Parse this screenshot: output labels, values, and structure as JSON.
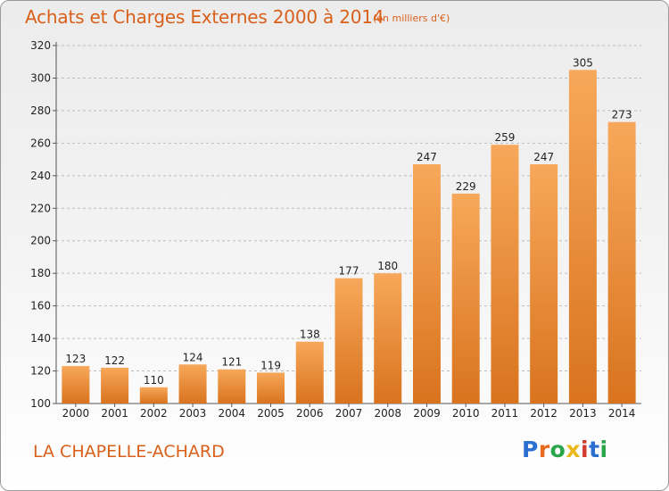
{
  "header": {
    "title": "Achats et Charges Externes 2000 à 2014",
    "subtitle": "(en milliers d'€)"
  },
  "footer": {
    "commune": "LA CHAPELLE-ACHARD",
    "brand": [
      "P",
      "r",
      "o",
      "x",
      "i",
      "t",
      "i"
    ]
  },
  "colors": {
    "bar_light": "#f7a85a",
    "bar_dark": "#d9731e",
    "text_accent": "#d9601b",
    "grid": "#bdbdbd"
  },
  "chart_data": {
    "type": "bar",
    "title": "Achats et Charges Externes 2000 à 2014",
    "subtitle": "(en milliers d'€)",
    "xlabel": "",
    "ylabel": "",
    "categories": [
      "2000",
      "2001",
      "2002",
      "2003",
      "2004",
      "2005",
      "2006",
      "2007",
      "2008",
      "2009",
      "2010",
      "2011",
      "2012",
      "2013",
      "2014"
    ],
    "values": [
      123,
      122,
      110,
      124,
      121,
      119,
      138,
      177,
      180,
      247,
      229,
      259,
      247,
      305,
      273
    ],
    "ylim": [
      100,
      320
    ],
    "yticks": [
      100,
      120,
      140,
      160,
      180,
      200,
      220,
      240,
      260,
      280,
      300,
      320
    ],
    "grid": true,
    "data_labels": true
  }
}
